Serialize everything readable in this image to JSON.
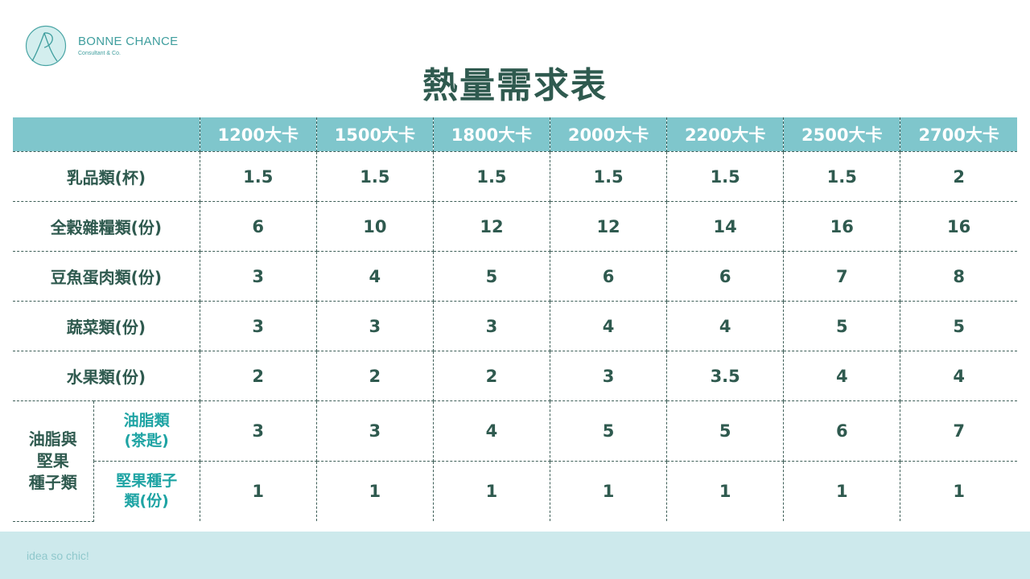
{
  "brand": {
    "name": "BONNE CHANCE",
    "subtitle": "Consultant & Co.",
    "accent_color": "#3f9e9e"
  },
  "title": "熱量需求表",
  "table": {
    "header_color": "#7fc6cc",
    "columns": [
      "1200大卡",
      "1500大卡",
      "1800大卡",
      "2000大卡",
      "2200大卡",
      "2500大卡",
      "2700大卡"
    ],
    "rows": [
      {
        "label": "乳品類(杯)",
        "values": [
          "1.5",
          "1.5",
          "1.5",
          "1.5",
          "1.5",
          "1.5",
          "2"
        ]
      },
      {
        "label": "全穀雜糧類(份)",
        "values": [
          "6",
          "10",
          "12",
          "12",
          "14",
          "16",
          "16"
        ]
      },
      {
        "label": "豆魚蛋肉類(份)",
        "values": [
          "3",
          "4",
          "5",
          "6",
          "6",
          "7",
          "8"
        ]
      },
      {
        "label": "蔬菜類(份)",
        "values": [
          "3",
          "3",
          "3",
          "4",
          "4",
          "5",
          "5"
        ]
      },
      {
        "label": "水果類(份)",
        "values": [
          "2",
          "2",
          "2",
          "3",
          "3.5",
          "4",
          "4"
        ]
      }
    ],
    "group": {
      "label_lines": [
        "油脂與",
        "堅果",
        "種子類"
      ],
      "subrows": [
        {
          "label_lines": [
            "油脂類",
            "(茶匙)"
          ],
          "values": [
            "3",
            "3",
            "4",
            "5",
            "5",
            "6",
            "7"
          ]
        },
        {
          "label_lines": [
            "堅果種子",
            "類(份)"
          ],
          "values": [
            "1",
            "1",
            "1",
            "1",
            "1",
            "1",
            "1"
          ]
        }
      ]
    }
  },
  "footer": {
    "text": "idea so chic!",
    "color": "#cde9ec"
  }
}
